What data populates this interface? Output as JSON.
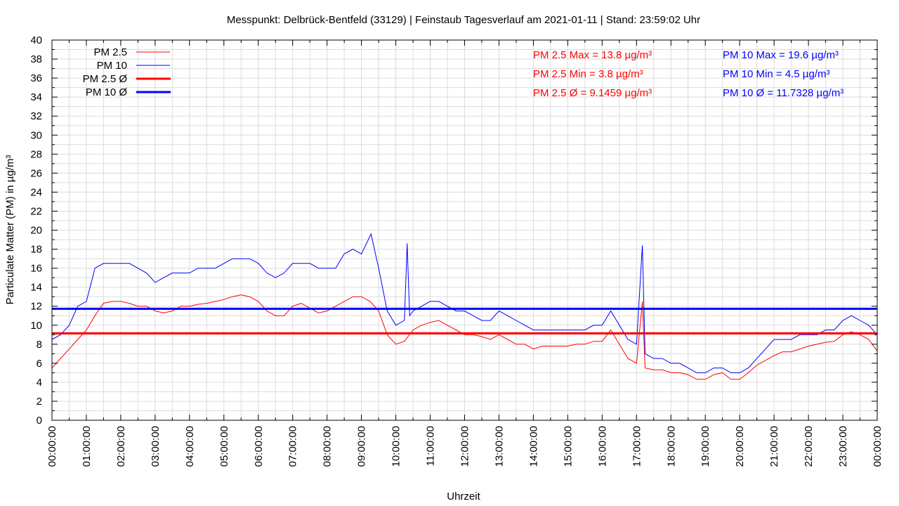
{
  "chart_data": {
    "type": "line",
    "title": "Messpunkt: Delbrück-Bentfeld (33129) | Feinstaub Tagesverlauf am 2021-01-11 | Stand: 23:59:02 Uhr",
    "xlabel": "Uhrzeit",
    "ylabel": "Particulate Matter (PM) in µg/m³",
    "xlim": [
      0,
      24
    ],
    "ylim": [
      0,
      40
    ],
    "grid": true,
    "legend_placement": "top-left",
    "x_tick_labels": [
      "00:00:00",
      "01:00:00",
      "02:00:00",
      "03:00:00",
      "04:00:00",
      "05:00:00",
      "06:00:00",
      "07:00:00",
      "08:00:00",
      "09:00:00",
      "10:00:00",
      "11:00:00",
      "12:00:00",
      "13:00:00",
      "14:00:00",
      "15:00:00",
      "16:00:00",
      "17:00:00",
      "18:00:00",
      "19:00:00",
      "20:00:00",
      "21:00:00",
      "22:00:00",
      "23:00:00",
      "00:00:00"
    ],
    "y_tick_labels": [
      "0",
      "2",
      "4",
      "6",
      "8",
      "10",
      "12",
      "14",
      "16",
      "18",
      "20",
      "22",
      "24",
      "26",
      "28",
      "30",
      "32",
      "34",
      "36",
      "38",
      "40"
    ],
    "series": [
      {
        "name": "PM 2.5",
        "color": "#ff0000",
        "x": [
          0,
          0.25,
          0.5,
          0.75,
          1,
          1.25,
          1.5,
          1.75,
          2,
          2.25,
          2.5,
          2.75,
          3,
          3.25,
          3.5,
          3.75,
          4,
          4.25,
          4.5,
          4.75,
          5,
          5.25,
          5.5,
          5.75,
          6,
          6.25,
          6.5,
          6.75,
          7,
          7.25,
          7.5,
          7.75,
          8,
          8.25,
          8.5,
          8.75,
          9,
          9.25,
          9.5,
          9.75,
          10,
          10.25,
          10.5,
          10.75,
          11,
          11.25,
          11.5,
          11.75,
          12,
          12.25,
          12.5,
          12.75,
          13,
          13.25,
          13.5,
          13.75,
          14,
          14.25,
          14.5,
          14.75,
          15,
          15.25,
          15.5,
          15.75,
          16,
          16.25,
          16.5,
          16.75,
          17,
          17.17,
          17.25,
          17.5,
          17.75,
          18,
          18.25,
          18.5,
          18.75,
          19,
          19.25,
          19.5,
          19.75,
          20,
          20.25,
          20.5,
          20.75,
          21,
          21.25,
          21.5,
          21.75,
          22,
          22.25,
          22.5,
          22.75,
          23,
          23.25,
          23.5,
          23.75,
          24
        ],
        "y": [
          5.5,
          6.5,
          7.5,
          8.5,
          9.5,
          11,
          12.3,
          12.5,
          12.5,
          12.3,
          12,
          12,
          11.5,
          11.3,
          11.5,
          12,
          12,
          12.2,
          12.3,
          12.5,
          12.7,
          13,
          13.2,
          13,
          12.5,
          11.5,
          11,
          11,
          12,
          12.3,
          11.8,
          11.3,
          11.5,
          12,
          12.5,
          13,
          13,
          12.5,
          11.5,
          9,
          8,
          8.3,
          9.5,
          10,
          10.3,
          10.5,
          10,
          9.5,
          9,
          9,
          8.8,
          8.5,
          9,
          8.5,
          8,
          8,
          7.5,
          7.8,
          7.8,
          7.8,
          7.8,
          8,
          8,
          8.3,
          8.3,
          9.5,
          8,
          6.5,
          6,
          12.5,
          5.5,
          5.3,
          5.3,
          5,
          5,
          4.8,
          4.3,
          4.3,
          4.8,
          5,
          4.3,
          4.3,
          5,
          5.8,
          6.3,
          6.8,
          7.2,
          7.2,
          7.5,
          7.8,
          8,
          8.2,
          8.3,
          9,
          9.3,
          9,
          8.5,
          7.3
        ]
      },
      {
        "name": "PM 10",
        "color": "#0000ff",
        "x": [
          0,
          0.25,
          0.5,
          0.75,
          1,
          1.25,
          1.5,
          1.75,
          2,
          2.25,
          2.5,
          2.75,
          3,
          3.25,
          3.5,
          3.75,
          4,
          4.25,
          4.5,
          4.75,
          5,
          5.25,
          5.5,
          5.75,
          6,
          6.25,
          6.5,
          6.75,
          7,
          7.25,
          7.5,
          7.75,
          8,
          8.25,
          8.5,
          8.75,
          9,
          9.28,
          9.5,
          9.75,
          10,
          10.25,
          10.33,
          10.4,
          10.5,
          10.75,
          11,
          11.25,
          11.5,
          11.75,
          12,
          12.25,
          12.5,
          12.75,
          13,
          13.25,
          13.5,
          13.75,
          14,
          14.25,
          14.5,
          14.75,
          15,
          15.25,
          15.5,
          15.75,
          16,
          16.25,
          16.5,
          16.75,
          17,
          17.17,
          17.25,
          17.5,
          17.75,
          18,
          18.25,
          18.5,
          18.75,
          19,
          19.25,
          19.5,
          19.75,
          20,
          20.25,
          20.5,
          20.75,
          21,
          21.25,
          21.5,
          21.75,
          22,
          22.25,
          22.5,
          22.75,
          23,
          23.25,
          23.5,
          23.75,
          24
        ],
        "y": [
          8.5,
          9,
          10,
          12,
          12.5,
          16,
          16.5,
          16.5,
          16.5,
          16.5,
          16,
          15.5,
          14.5,
          15,
          15.5,
          15.5,
          15.5,
          16,
          16,
          16,
          16.5,
          17,
          17,
          17,
          16.5,
          15.5,
          15,
          15.5,
          16.5,
          16.5,
          16.5,
          16,
          16,
          16,
          17.5,
          18,
          17.5,
          19.6,
          16,
          11.5,
          10,
          10.5,
          18.6,
          11,
          11.5,
          12,
          12.5,
          12.5,
          12,
          11.5,
          11.5,
          11,
          10.5,
          10.5,
          11.5,
          11,
          10.5,
          10,
          9.5,
          9.5,
          9.5,
          9.5,
          9.5,
          9.5,
          9.5,
          10,
          10,
          11.5,
          10,
          8.5,
          8,
          18.4,
          7,
          6.5,
          6.5,
          6,
          6,
          5.5,
          5,
          5,
          5.5,
          5.5,
          5,
          5,
          5.5,
          6.5,
          7.5,
          8.5,
          8.5,
          8.5,
          9,
          9,
          9,
          9.5,
          9.5,
          10.5,
          11,
          10.5,
          10,
          9
        ]
      },
      {
        "name": "PM 2.5 Ø",
        "color": "#ff0000",
        "value": 9.1459
      },
      {
        "name": "PM 10 Ø",
        "color": "#0000ff",
        "value": 11.7328
      }
    ],
    "annotations": {
      "pm25": [
        "PM 2.5 Max = 13.8 µg/m³",
        "PM 2.5 Min = 3.8 µg/m³",
        "PM 2.5 Ø = 9.1459 µg/m³"
      ],
      "pm10": [
        "PM 10 Max = 19.6 µg/m³",
        "PM 10 Min = 4.5 µg/m³",
        "PM 10 Ø = 11.7328 µg/m³"
      ]
    }
  }
}
